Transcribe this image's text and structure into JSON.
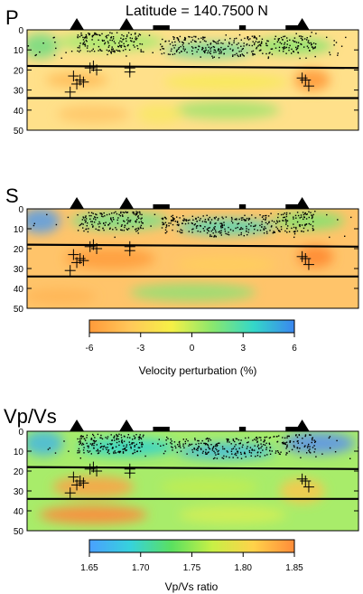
{
  "figure": {
    "title": "Latitude = 140.7500 N"
  },
  "colors": {
    "velocity_scale": [
      "#ff9a3a",
      "#ffc85a",
      "#f6f046",
      "#8ae86e",
      "#34d8c8",
      "#3a86f0"
    ],
    "ratio_scale": [
      "#4aa0ff",
      "#36d2dc",
      "#5ae060",
      "#c8f046",
      "#ffd24a",
      "#ff8c3a"
    ]
  },
  "chart_data": [
    {
      "type": "heatmap",
      "title": "P",
      "xlabel": "",
      "ylabel": "",
      "ylim": [
        50,
        0
      ],
      "yticks": [
        "0",
        "10",
        "20",
        "30",
        "40",
        "50"
      ],
      "interface_depths_left_right": [
        [
          18,
          19
        ],
        [
          34,
          34
        ]
      ],
      "grid": false,
      "volcano_markers": 3
    },
    {
      "type": "heatmap",
      "title": "S",
      "xlabel": "",
      "ylabel": "",
      "ylim": [
        50,
        0
      ],
      "yticks": [
        "0",
        "10",
        "20",
        "30",
        "40",
        "50"
      ],
      "interface_depths_left_right": [
        [
          18,
          19
        ],
        [
          34,
          34
        ]
      ],
      "grid": false,
      "volcano_markers": 3
    },
    {
      "type": "heatmap",
      "title": "Vp/Vs",
      "xlabel": "",
      "ylabel": "",
      "ylim": [
        50,
        0
      ],
      "yticks": [
        "0",
        "10",
        "20",
        "30",
        "40",
        "50"
      ],
      "interface_depths_left_right": [
        [
          18,
          19
        ],
        [
          34,
          34
        ]
      ],
      "grid": false,
      "volcano_markers": 3
    }
  ],
  "colorbars": [
    {
      "label": "Velocity perturbation (%)",
      "min": -6,
      "max": 6,
      "ticks": [
        "-6",
        "-3",
        "0",
        "3",
        "6"
      ]
    },
    {
      "label": "Vp/Vs ratio",
      "min": 1.65,
      "max": 1.85,
      "ticks": [
        "1.65",
        "1.70",
        "1.75",
        "1.80",
        "1.85"
      ]
    }
  ]
}
